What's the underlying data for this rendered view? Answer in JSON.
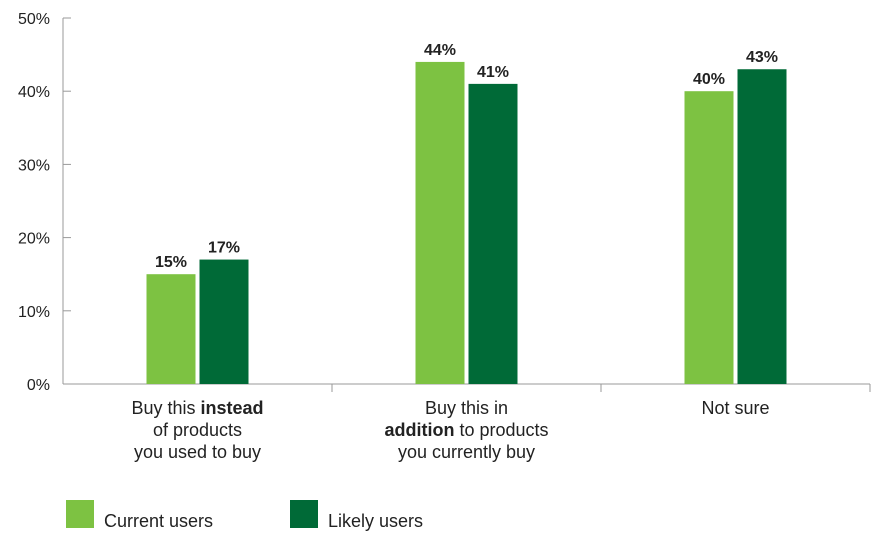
{
  "chart_data": {
    "type": "bar",
    "categories": [
      {
        "lines": [
          [
            {
              "text": "Buy this ",
              "bold": false
            },
            {
              "text": "instead",
              "bold": true
            }
          ],
          [
            {
              "text": "of products",
              "bold": false
            }
          ],
          [
            {
              "text": "you used to buy",
              "bold": false
            }
          ]
        ]
      },
      {
        "lines": [
          [
            {
              "text": "Buy this in",
              "bold": false
            }
          ],
          [
            {
              "text": "addition",
              "bold": true
            },
            {
              "text": " to products",
              "bold": false
            }
          ],
          [
            {
              "text": "you currently buy",
              "bold": false
            }
          ]
        ]
      },
      {
        "lines": [
          [
            {
              "text": "Not sure",
              "bold": false
            }
          ]
        ]
      }
    ],
    "series": [
      {
        "name": "Current users",
        "color": "#7dc242",
        "values": [
          15,
          44,
          40
        ]
      },
      {
        "name": "Likely users",
        "color": "#006a37",
        "values": [
          17,
          41,
          43
        ]
      }
    ],
    "ylim": [
      0,
      50
    ],
    "yticks": [
      0,
      10,
      20,
      30,
      40,
      50
    ],
    "tick_suffix": "%",
    "value_suffix": "%",
    "grid": false,
    "legend_position": "bottom-left",
    "axis_color": "#999999"
  }
}
